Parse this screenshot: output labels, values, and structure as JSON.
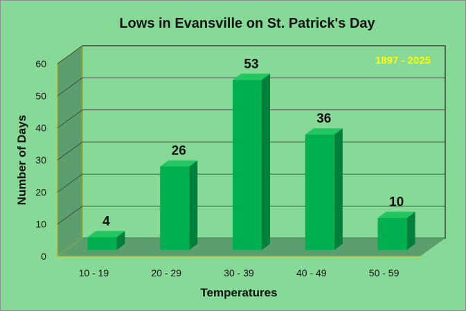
{
  "colors": {
    "background": "#86d996",
    "bar_front": "#00b050",
    "bar_side": "#00803a",
    "bar_top": "#22c760",
    "floor": "#5c9e6e",
    "back_wall": "#86d996",
    "annotation": "#ffff00"
  },
  "chart_data": {
    "type": "bar",
    "title": "Lows in Evansville on St. Patrick's Day",
    "xlabel": "Temperatures",
    "ylabel": "Number of Days",
    "annotation": "1897 - 2025",
    "categories": [
      "10 - 19",
      "20 - 29",
      "30 - 39",
      "40 - 49",
      "50 - 59"
    ],
    "values": [
      4,
      26,
      53,
      36,
      10
    ],
    "ylim": [
      0,
      60
    ],
    "yticks": [
      0,
      10,
      20,
      30,
      40,
      50,
      60
    ],
    "grid": true,
    "legend": "none"
  }
}
